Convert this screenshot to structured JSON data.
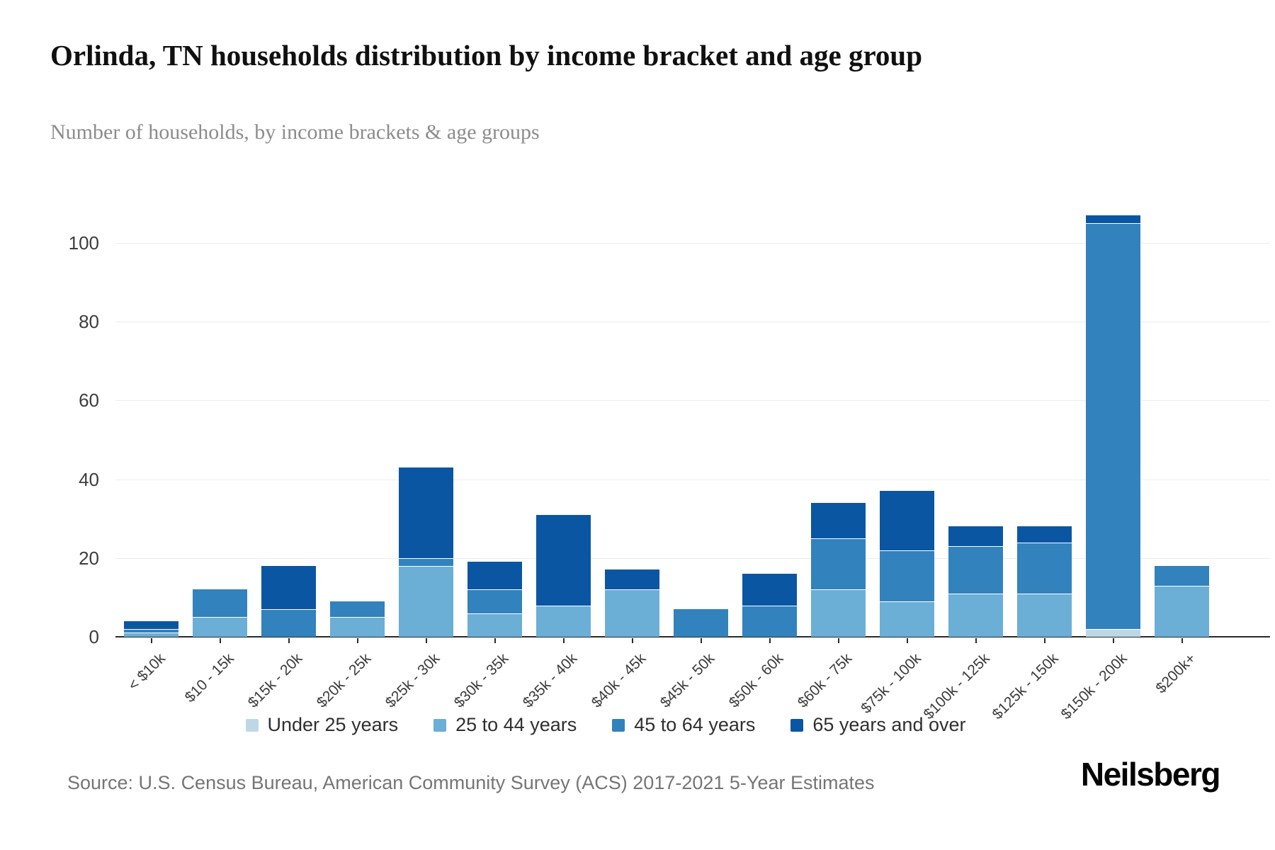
{
  "title": "Orlinda, TN households distribution by income bracket and age group",
  "subtitle": "Number of households, by income brackets & age groups",
  "source": "Source: U.S. Census Bureau, American Community Survey (ACS) 2017-2021 5-Year Estimates",
  "logo": "Neilsberg",
  "chart_data": {
    "type": "bar",
    "stacked": true,
    "title": "Orlinda, TN households distribution by income bracket and age group",
    "xlabel": "",
    "ylabel": "Number of households",
    "ylim": [
      0,
      108
    ],
    "yticks": [
      0,
      20,
      40,
      60,
      80,
      100
    ],
    "grid": true,
    "legend_position": "bottom",
    "categories": [
      "< $10k",
      "$10 - 15k",
      "$15k - 20k",
      "$20k - 25k",
      "$25k - 30k",
      "$30k - 35k",
      "$35k - 40k",
      "$40k - 45k",
      "$45k - 50k",
      "$50k - 60k",
      "$60k - 75k",
      "$75k - 100k",
      "$100k - 125k",
      "$125k - 150k",
      "$150k - 200k",
      "$200k+"
    ],
    "series": [
      {
        "name": "Under 25 years",
        "color": "#bdd7e7",
        "values": [
          0,
          0,
          0,
          0,
          0,
          0,
          0,
          0,
          0,
          0,
          0,
          0,
          0,
          0,
          2,
          0
        ]
      },
      {
        "name": "25 to 44 years",
        "color": "#6baed6",
        "values": [
          1,
          5,
          0,
          5,
          18,
          6,
          8,
          12,
          0,
          0,
          12,
          9,
          11,
          11,
          0,
          13
        ]
      },
      {
        "name": "45 to 64 years",
        "color": "#3182bd",
        "values": [
          1,
          7,
          7,
          4,
          2,
          6,
          0,
          0,
          7,
          8,
          13,
          13,
          12,
          13,
          103,
          5
        ]
      },
      {
        "name": "65 years and over",
        "color": "#0b56a3",
        "values": [
          2,
          0,
          11,
          0,
          23,
          7,
          23,
          5,
          0,
          8,
          9,
          15,
          5,
          4,
          2,
          0
        ]
      }
    ],
    "totals": [
      4,
      12,
      18,
      9,
      43,
      19,
      31,
      17,
      7,
      16,
      34,
      37,
      28,
      28,
      107,
      18
    ]
  }
}
